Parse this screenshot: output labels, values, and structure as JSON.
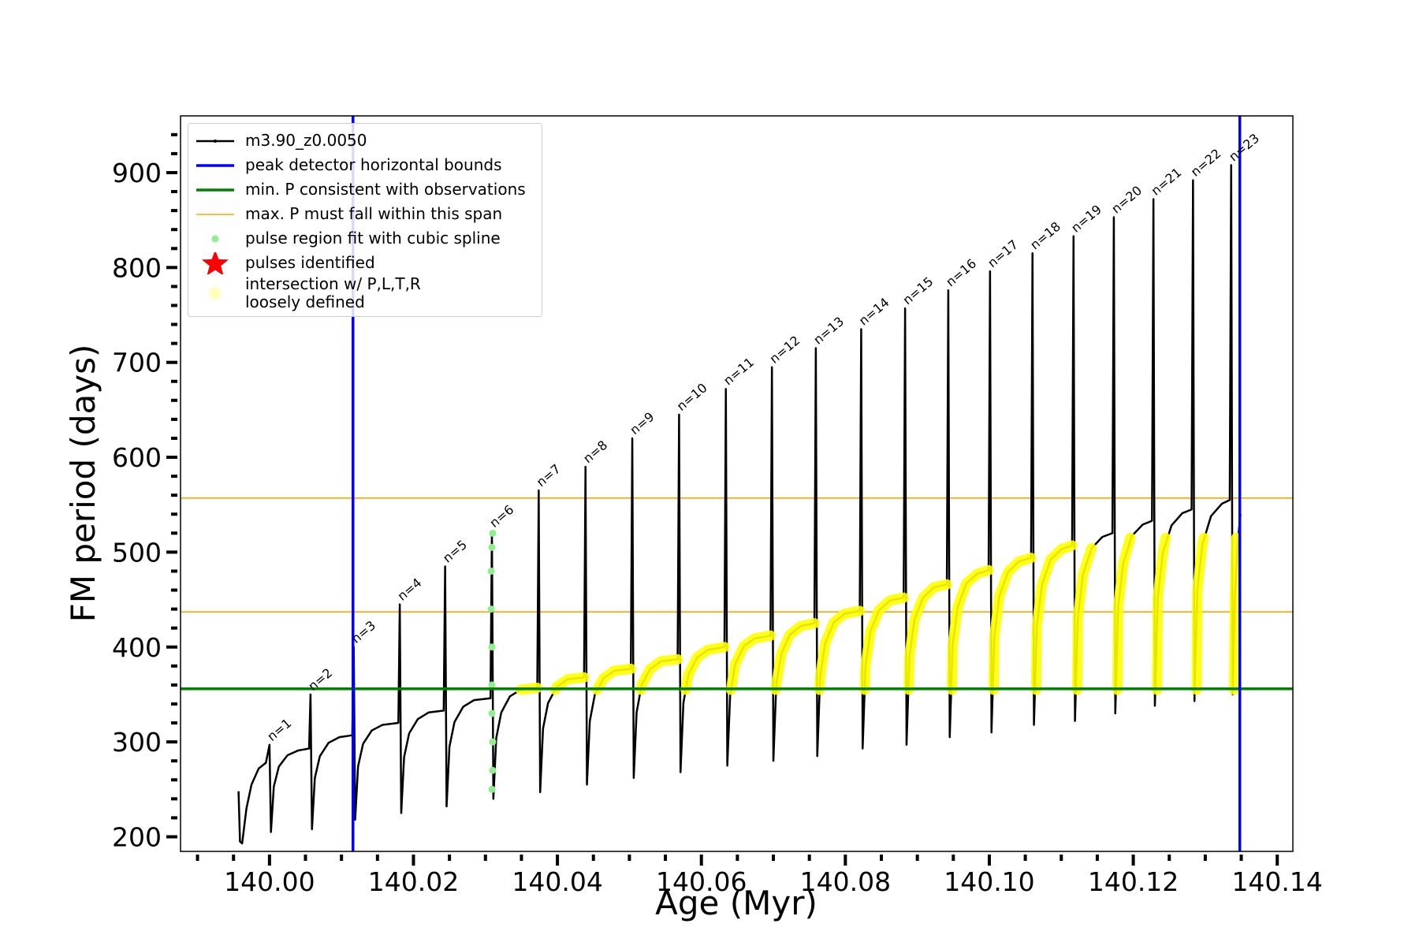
{
  "chart_data": {
    "type": "line",
    "xlabel": "Age (Myr)",
    "ylabel": "FM period (days)",
    "xlim": [
      139.98764,
      140.14217
    ],
    "ylim": [
      184.6,
      959.8
    ],
    "xticks": [
      {
        "value": 140.0,
        "label": "140.00"
      },
      {
        "value": 140.02,
        "label": "140.02"
      },
      {
        "value": 140.04,
        "label": "140.04"
      },
      {
        "value": 140.06,
        "label": "140.06"
      },
      {
        "value": 140.08,
        "label": "140.08"
      },
      {
        "value": 140.1,
        "label": "140.10"
      },
      {
        "value": 140.12,
        "label": "140.12"
      },
      {
        "value": 140.14,
        "label": "140.14"
      }
    ],
    "yticks": [
      200,
      300,
      400,
      500,
      600,
      700,
      800,
      900
    ],
    "xminorticks": [
      139.99,
      139.995,
      140.005,
      140.01,
      140.015,
      140.025,
      140.03,
      140.035,
      140.045,
      140.05,
      140.055,
      140.065,
      140.07,
      140.075,
      140.085,
      140.09,
      140.095,
      140.105,
      140.11,
      140.115,
      140.125,
      140.13,
      140.135
    ],
    "yminorticks": [
      220,
      240,
      260,
      280,
      320,
      340,
      360,
      380,
      420,
      440,
      460,
      480,
      520,
      540,
      560,
      580,
      620,
      640,
      660,
      680,
      720,
      740,
      760,
      780,
      820,
      840,
      860,
      880,
      920,
      940
    ],
    "legend": "upper left",
    "series": [
      {
        "name": "m3.90_z0.0050",
        "kind": "line",
        "color": "#000000",
        "x": [
          139.9957,
          139.9959,
          139.9962,
          139.9968,
          139.9975,
          139.9985,
          139.9995,
          140.0,
          140.0002,
          140.0006,
          140.0013,
          140.0025,
          140.004,
          140.0055,
          140.0057,
          140.0059,
          140.0063,
          140.007,
          140.0082,
          140.0097,
          140.0115,
          140.0117,
          140.0119,
          140.0123,
          140.013,
          140.0142,
          140.0157,
          140.0179,
          140.0181,
          140.0183,
          140.0187,
          140.0194,
          140.0206,
          140.0221,
          140.0242,
          140.0244,
          140.0246,
          140.025,
          140.0257,
          140.0269,
          140.0284,
          140.0307,
          140.0309,
          140.0311,
          140.0315,
          140.0322,
          140.0334,
          140.0349,
          140.0372,
          140.0374,
          140.0376,
          140.038,
          140.0387,
          140.0399,
          140.0414,
          140.0437,
          140.0439,
          140.0441,
          140.0445,
          140.0452,
          140.0464,
          140.0479,
          140.0502,
          140.0504,
          140.0506,
          140.051,
          140.0517,
          140.0529,
          140.0544,
          140.0567,
          140.0569,
          140.0571,
          140.0575,
          140.0582,
          140.0594,
          140.0609,
          140.0632,
          140.0634,
          140.0636,
          140.064,
          140.0647,
          140.0659,
          140.0674,
          140.0696,
          140.0698,
          140.07,
          140.0704,
          140.0711,
          140.0723,
          140.0738,
          140.0757,
          140.0759,
          140.0761,
          140.0765,
          140.0772,
          140.0784,
          140.0799,
          140.082,
          140.0822,
          140.0824,
          140.0828,
          140.0835,
          140.0847,
          140.0862,
          140.0881,
          140.0883,
          140.0885,
          140.0889,
          140.0896,
          140.0908,
          140.0923,
          140.0941,
          140.0943,
          140.0945,
          140.0949,
          140.0956,
          140.0968,
          140.0983,
          140.0999,
          140.1001,
          140.1003,
          140.1007,
          140.1014,
          140.1026,
          140.1041,
          140.1058,
          140.106,
          140.1062,
          140.1066,
          140.1073,
          140.1085,
          140.11,
          140.1115,
          140.1117,
          140.1119,
          140.1123,
          140.113,
          140.1142,
          140.1157,
          140.1171,
          140.1173,
          140.1175,
          140.1179,
          140.1186,
          140.1198,
          140.1213,
          140.1226,
          140.1228,
          140.123,
          140.1234,
          140.1241,
          140.1253,
          140.1268,
          140.1281,
          140.1283,
          140.1285,
          140.1289,
          140.1296,
          140.1308,
          140.1323,
          140.1334,
          140.1336,
          140.1338,
          140.1341,
          140.1345,
          140.1349
        ],
        "values": [
          248,
          195,
          193,
          230,
          255,
          272,
          278,
          297,
          205,
          253,
          274,
          286,
          291,
          293,
          350,
          208,
          262,
          285,
          299,
          305,
          307,
          400,
          218,
          274,
          298,
          312,
          318,
          320,
          445,
          225,
          284,
          309,
          324,
          331,
          333,
          485,
          232,
          295,
          321,
          337,
          344,
          346,
          522,
          240,
          304,
          331,
          348,
          355,
          357,
          565,
          247,
          314,
          341,
          358,
          366,
          368,
          590,
          255,
          322,
          350,
          367,
          375,
          377,
          620,
          262,
          331,
          360,
          377,
          385,
          387,
          645,
          268,
          341,
          371,
          389,
          397,
          400,
          672,
          275,
          350,
          382,
          401,
          409,
          412,
          695,
          280,
          360,
          393,
          413,
          422,
          425,
          715,
          285,
          369,
          404,
          426,
          435,
          438,
          735,
          293,
          380,
          417,
          439,
          449,
          452,
          757,
          297,
          390,
          429,
          452,
          463,
          466,
          776,
          305,
          402,
          442,
          467,
          477,
          481,
          796,
          310,
          411,
          454,
          479,
          490,
          494,
          815,
          318,
          422,
          465,
          492,
          503,
          507,
          833,
          322,
          431,
          476,
          504,
          516,
          520,
          853,
          330,
          442,
          488,
          517,
          529,
          533,
          872,
          338,
          452,
          499,
          528,
          541,
          545,
          892,
          343,
          460,
          508,
          538,
          551,
          555,
          908,
          350,
          450,
          510,
          540
        ]
      },
      {
        "name": "peak detector horizontal bounds",
        "kind": "vline",
        "color": "#0000ff",
        "x": [
          140.0116,
          140.1348
        ]
      },
      {
        "name": "min. P consistent with observations",
        "kind": "hline",
        "color": "#008000",
        "values": [
          356
        ]
      },
      {
        "name": "max. P must fall within this span",
        "kind": "hline-thin",
        "color": "#ffa500",
        "values": [
          437,
          557
        ]
      },
      {
        "name": "pulse region fit with cubic spline",
        "kind": "scatter",
        "color": "#90ee90",
        "x": [
          140.0309,
          140.031,
          140.031,
          140.0309,
          140.0309,
          140.0309,
          140.0308,
          140.0308,
          140.0309,
          140.031
        ],
        "values": [
          250,
          270,
          300,
          330,
          360,
          400,
          440,
          480,
          505,
          520
        ]
      },
      {
        "name": "pulses identified",
        "kind": "star",
        "color": "#ff0000",
        "x": [],
        "values": []
      },
      {
        "name": "intersection w/ P,L,T,R\nloosely defined",
        "kind": "band",
        "color": "#ffff00",
        "x": [
          140.0349,
          140.0372,
          null,
          140.0397,
          140.0399,
          140.0414,
          140.0437,
          null,
          140.0455,
          140.0464,
          140.0479,
          140.0502,
          null,
          140.0516,
          140.0517,
          140.0529,
          140.0544,
          140.0567,
          null,
          140.0578,
          140.0582,
          140.0594,
          140.0609,
          140.0632,
          null,
          140.0641,
          140.0647,
          140.0659,
          140.0674,
          140.0696,
          null,
          140.0703,
          140.0711,
          140.0723,
          140.0738,
          140.0757,
          null,
          140.0764,
          140.0765,
          140.0772,
          140.0784,
          140.0799,
          140.082,
          null,
          140.0827,
          140.0828,
          140.0835,
          140.0847,
          140.0862,
          140.0881,
          null,
          140.0888,
          140.0889,
          140.0896,
          140.0908,
          140.0923,
          140.0941,
          null,
          140.0948,
          140.0949,
          140.0956,
          140.0968,
          140.0983,
          140.0999,
          null,
          140.1006,
          140.1007,
          140.1014,
          140.1026,
          140.1041,
          140.1058,
          null,
          140.1065,
          140.1066,
          140.1073,
          140.1085,
          140.11,
          140.1115,
          null,
          140.1122,
          140.1123,
          140.113,
          140.1142,
          null,
          140.1178,
          140.1179,
          140.1186,
          140.1196,
          null,
          140.1233,
          140.1234,
          140.1241,
          140.1245,
          null,
          140.1288,
          140.1289,
          140.1296,
          140.1298,
          null,
          140.134,
          140.1341,
          140.1343
        ],
        "values": [
          355,
          357,
          null,
          355,
          358,
          366,
          368,
          null,
          355,
          367,
          375,
          377,
          null,
          355,
          360,
          377,
          385,
          387,
          null,
          355,
          371,
          389,
          397,
          400,
          null,
          355,
          382,
          401,
          409,
          412,
          null,
          355,
          393,
          413,
          422,
          425,
          null,
          355,
          369,
          404,
          426,
          435,
          438,
          null,
          355,
          380,
          417,
          439,
          449,
          452,
          null,
          355,
          390,
          429,
          452,
          463,
          466,
          null,
          355,
          402,
          442,
          467,
          477,
          481,
          null,
          355,
          411,
          454,
          479,
          490,
          494,
          null,
          355,
          422,
          465,
          492,
          503,
          507,
          null,
          355,
          431,
          476,
          504,
          null,
          355,
          442,
          488,
          515,
          null,
          355,
          452,
          499,
          515,
          null,
          355,
          460,
          508,
          515,
          null,
          355,
          450,
          515
        ]
      }
    ],
    "annotations": [
      {
        "text": "n=1",
        "x": 140.0,
        "y": 297
      },
      {
        "text": "n=2",
        "x": 140.0057,
        "y": 350
      },
      {
        "text": "n=3",
        "x": 140.0117,
        "y": 400
      },
      {
        "text": "n=4",
        "x": 140.0181,
        "y": 445
      },
      {
        "text": "n=5",
        "x": 140.0244,
        "y": 485
      },
      {
        "text": "n=6",
        "x": 140.0309,
        "y": 522
      },
      {
        "text": "n=7",
        "x": 140.0374,
        "y": 565
      },
      {
        "text": "n=8",
        "x": 140.0439,
        "y": 590
      },
      {
        "text": "n=9",
        "x": 140.0504,
        "y": 620
      },
      {
        "text": "n=10",
        "x": 140.0569,
        "y": 645
      },
      {
        "text": "n=11",
        "x": 140.0634,
        "y": 672
      },
      {
        "text": "n=12",
        "x": 140.0698,
        "y": 695
      },
      {
        "text": "n=13",
        "x": 140.0759,
        "y": 715
      },
      {
        "text": "n=14",
        "x": 140.0822,
        "y": 735
      },
      {
        "text": "n=15",
        "x": 140.0883,
        "y": 757
      },
      {
        "text": "n=16",
        "x": 140.0943,
        "y": 776
      },
      {
        "text": "n=17",
        "x": 140.1001,
        "y": 796
      },
      {
        "text": "n=18",
        "x": 140.106,
        "y": 815
      },
      {
        "text": "n=19",
        "x": 140.1117,
        "y": 833
      },
      {
        "text": "n=20",
        "x": 140.1173,
        "y": 853
      },
      {
        "text": "n=21",
        "x": 140.1228,
        "y": 872
      },
      {
        "text": "n=22",
        "x": 140.1283,
        "y": 892
      },
      {
        "text": "n=23",
        "x": 140.1336,
        "y": 908
      }
    ]
  }
}
